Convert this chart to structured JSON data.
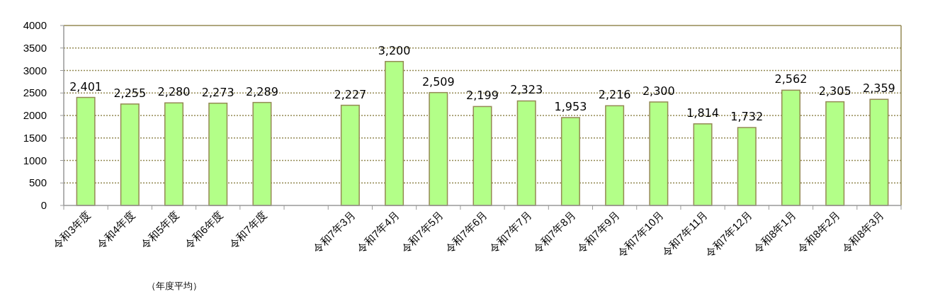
{
  "chart_data": {
    "type": "bar",
    "categories": [
      "令和3年度",
      "令和4年度",
      "令和5年度",
      "令和6年度",
      "令和7年度",
      null,
      "令和7年3月",
      "令和7年4月",
      "令和7年5月",
      "令和7年6月",
      "令和7年7月",
      "令和7年8月",
      "令和7年9月",
      "令和7年10月",
      "令和7年11月",
      "令和7年12月",
      "令和8年1月",
      "令和8年2月",
      "令和8年3月"
    ],
    "values": [
      2401,
      2255,
      2280,
      2273,
      2289,
      null,
      2227,
      3200,
      2509,
      2199,
      2323,
      1953,
      2216,
      2300,
      1814,
      1732,
      2562,
      2305,
      2359
    ],
    "value_labels": [
      "2,401",
      "2,255",
      "2,280",
      "2,273",
      "2,289",
      null,
      "2,227",
      "3,200",
      "2,509",
      "2,199",
      "2,323",
      "1,953",
      "2,216",
      "2,300",
      "1,814",
      "1,732",
      "2,562",
      "2,305",
      "2,359"
    ],
    "color": "#b3ff88",
    "ylim": [
      0,
      4000
    ],
    "yticks": [
      0,
      500,
      1000,
      1500,
      2000,
      2500,
      3000,
      3500,
      4000
    ],
    "grid": "y",
    "annotations": [
      "（年度平均）"
    ]
  }
}
